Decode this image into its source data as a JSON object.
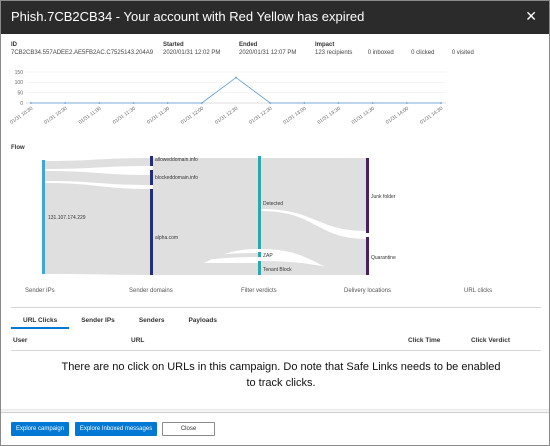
{
  "window": {
    "title": "Phish.7CB2CB34 - Your account with Red Yellow has expired",
    "close_glyph": "✕"
  },
  "meta": {
    "id_label": "ID",
    "id_value": "7CB2CB34.557ADEE2.AE5FB2AC.C7525143.204A9",
    "started_label": "Started",
    "started_value": "2020/01/31 12:02 PM",
    "ended_label": "Ended",
    "ended_value": "2020/01/31 12:07 PM",
    "impact_label": "Impact",
    "recipients": "123 recipients",
    "inboxed": "0 inboxed",
    "clicked": "0 clicked",
    "visited": "0 visited"
  },
  "chart_data": {
    "type": "line",
    "title": "",
    "xlabel": "",
    "ylabel": "",
    "x": [
      "01/31 10:30",
      "01/31 10:30",
      "01/31 11:00",
      "01/31 11:30",
      "01/31 11:30",
      "01/31 12:00",
      "01/31 12:30",
      "01/31 12:30",
      "01/31 13:00",
      "01/31 13:30",
      "01/31 13:30",
      "01/31 14:00",
      "01/31 14:30"
    ],
    "y_ticks": [
      "150",
      "100",
      "50",
      "0"
    ],
    "ylim": [
      0,
      150
    ],
    "series": [
      {
        "values": [
          0,
          0,
          0,
          0,
          0,
          0,
          123,
          0,
          0,
          0,
          0,
          0,
          0
        ]
      }
    ],
    "line_color": "#5b9bd5",
    "grid": true
  },
  "flow": {
    "label": "Flow",
    "columns": [
      "Sender IPs",
      "Sender domains",
      "Filter verdicts",
      "Delivery locations",
      "URL clicks"
    ],
    "nodes": {
      "ip": "131.107.174.229",
      "allowed": "alloweddomain.info",
      "blocked": "blockeddomain.info",
      "alpha": "alpha.com",
      "detected": "Detected",
      "zap": "ZAP",
      "tenant": "Tenant Block",
      "junk": "Junk folder",
      "quarantine": "Quarantine"
    },
    "colors": {
      "ip": "#3fa7d6",
      "domain": "#1f2f7a",
      "verdict": "#2fa5b0",
      "location": "#4b1f5e",
      "band": "#dcdcdc"
    }
  },
  "tabs": [
    {
      "label": "URL Clicks"
    },
    {
      "label": "Sender IPs"
    },
    {
      "label": "Senders"
    },
    {
      "label": "Payloads"
    }
  ],
  "table": {
    "col_user": "User",
    "col_url": "URL",
    "col_click_time": "Click Time",
    "col_click_verdict": "Click Verdict",
    "empty_message": "There are no click on URLs in this campaign. Do note that Safe Links needs to be enabled to track clicks."
  },
  "footer": {
    "explore_campaign": "Explore campaign",
    "explore_inboxed": "Explore Inboxed messages",
    "close": "Close"
  }
}
